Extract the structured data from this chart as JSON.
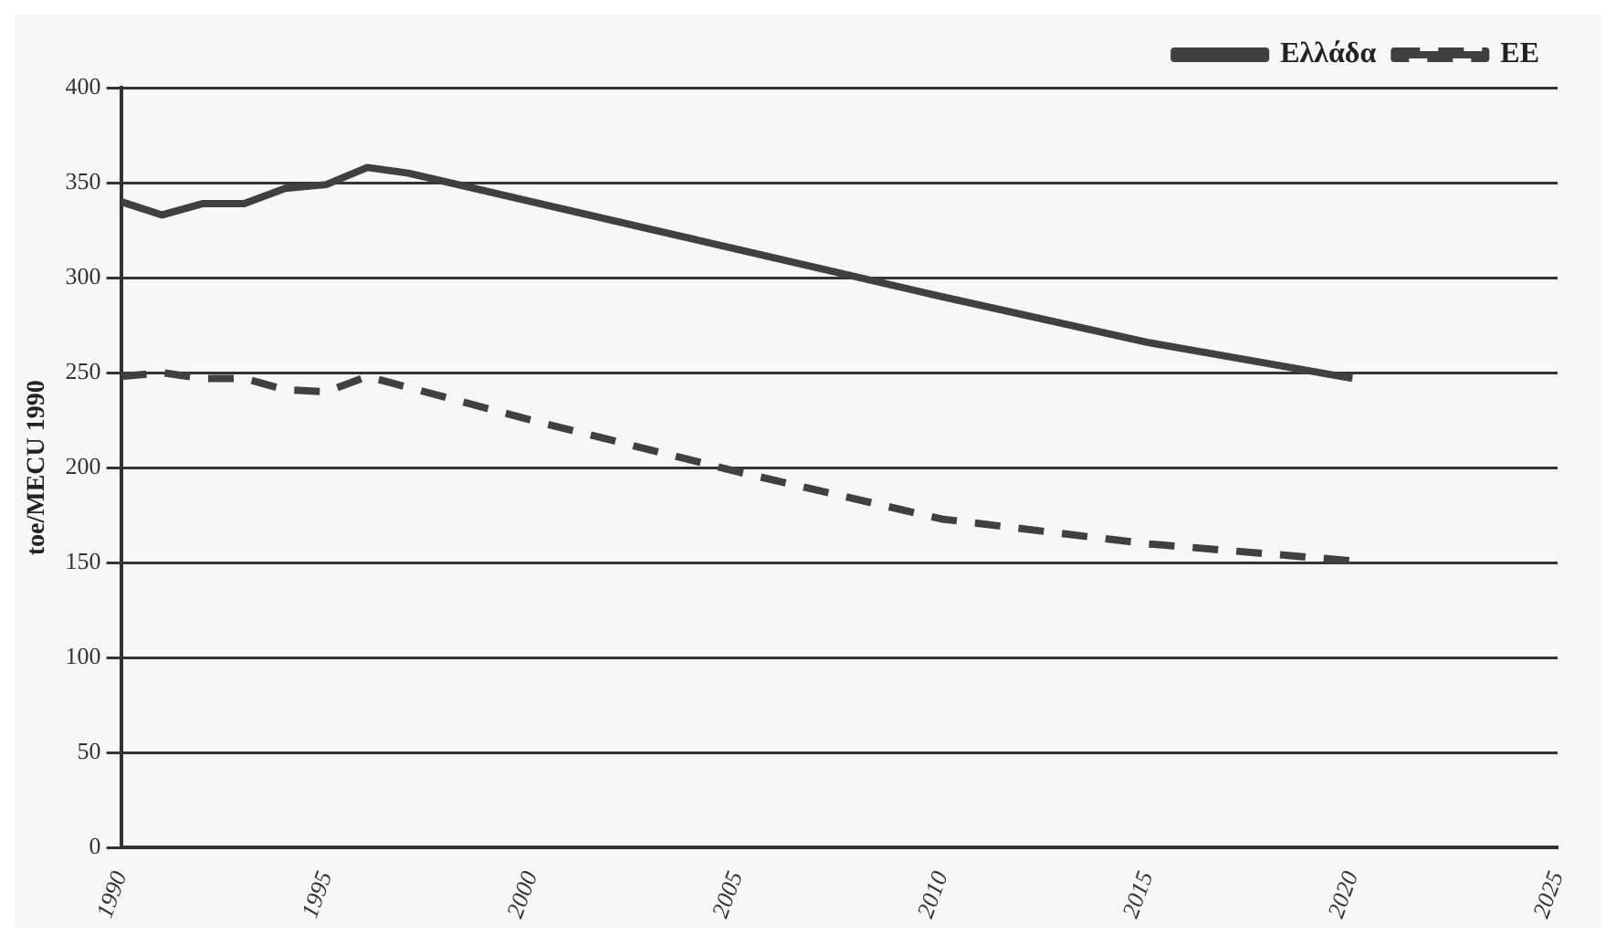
{
  "chart_data": {
    "type": "line",
    "ylabel": "toe/MECU 1990",
    "xlim": [
      1990,
      2025
    ],
    "xticks": [
      1990,
      1995,
      2000,
      2005,
      2010,
      2015,
      2020,
      2025
    ],
    "ylim": [
      0,
      400
    ],
    "yticks": [
      0,
      50,
      100,
      150,
      200,
      250,
      300,
      350,
      400
    ],
    "grid": "y",
    "legend": "top right",
    "marker": "none",
    "series": [
      {
        "name": "Ελλάδα",
        "color": "#404040",
        "line_style": "solid",
        "x": [
          1990,
          1991,
          1992,
          1993,
          1994,
          1995,
          1996,
          1997,
          2000,
          2005,
          2010,
          2015,
          2020
        ],
        "values": [
          340,
          333,
          339,
          339,
          347,
          349,
          358,
          355,
          340,
          315,
          290,
          266,
          247
        ]
      },
      {
        "name": "ΕΕ",
        "color": "#404040",
        "line_style": "dashed",
        "x": [
          1990,
          1991,
          1992,
          1993,
          1994,
          1995,
          1996,
          2000,
          2005,
          2010,
          2015,
          2020
        ],
        "values": [
          248,
          250,
          247,
          247,
          241,
          240,
          248,
          225,
          198,
          173,
          160,
          151
        ]
      }
    ]
  }
}
